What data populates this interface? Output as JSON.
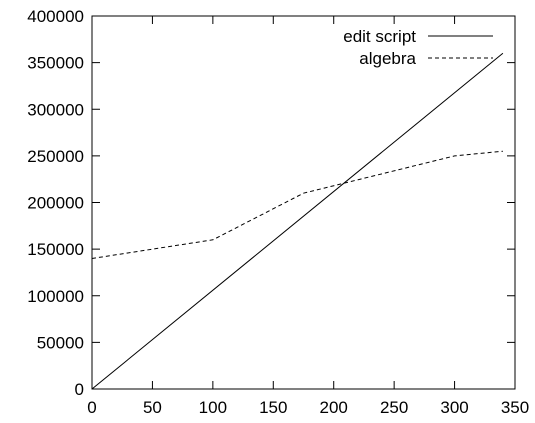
{
  "chart_data": {
    "type": "line",
    "title": "",
    "xlabel": "",
    "ylabel": "",
    "xlim": [
      0,
      350
    ],
    "ylim": [
      0,
      400000
    ],
    "x_ticks": [
      0,
      50,
      100,
      150,
      200,
      250,
      300,
      350
    ],
    "y_ticks": [
      0,
      50000,
      100000,
      150000,
      200000,
      250000,
      300000,
      350000,
      400000
    ],
    "x_tick_labels": [
      "0",
      "50",
      "100",
      "150",
      "200",
      "250",
      "300",
      "350"
    ],
    "y_tick_labels": [
      "0",
      "50000",
      "100000",
      "150000",
      "200000",
      "250000",
      "300000",
      "350000",
      "400000"
    ],
    "grid": false,
    "legend_position": "top-right",
    "series": [
      {
        "name": "edit script",
        "style": "solid",
        "color": "#000000",
        "x": [
          0,
          340
        ],
        "y": [
          0,
          360000
        ]
      },
      {
        "name": "algebra",
        "style": "dashed",
        "color": "#000000",
        "x": [
          0,
          100,
          175,
          300,
          340
        ],
        "y": [
          140000,
          160000,
          210000,
          250000,
          255000
        ]
      }
    ]
  }
}
